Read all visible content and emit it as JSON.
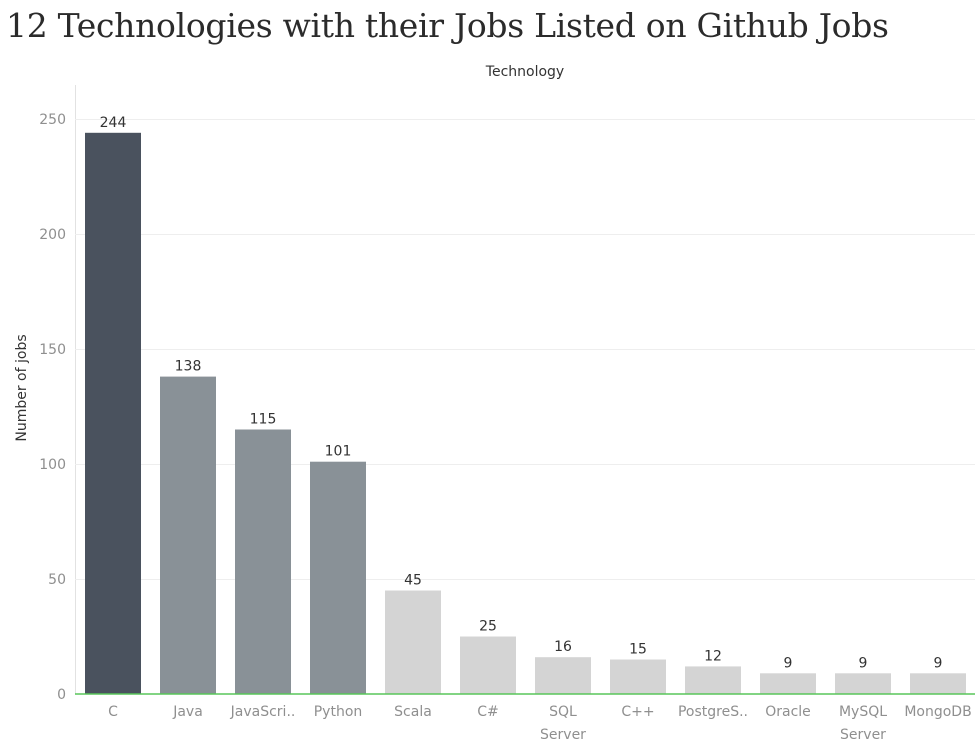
{
  "page_title": "12 Technologies with their Jobs Listed on Github Jobs",
  "chart_data": {
    "type": "bar",
    "title": "12 Technologies with their Jobs Listed on Github Jobs",
    "xlabel": "Technology",
    "ylabel": "Number of jobs",
    "x_axis_position": "top",
    "categories": [
      "C",
      "Java",
      "JavaScri..",
      "Python",
      "Scala",
      "C#",
      "SQL Server",
      "C++",
      "PostgreS..",
      "Oracle",
      "MySQL Server",
      "MongoDB"
    ],
    "values": [
      244,
      138,
      115,
      101,
      45,
      25,
      16,
      15,
      12,
      9,
      9,
      9
    ],
    "bar_colors": [
      "#4a525e",
      "#899197",
      "#899197",
      "#899197",
      "#d4d4d4",
      "#d4d4d4",
      "#d4d4d4",
      "#d4d4d4",
      "#d4d4d4",
      "#d4d4d4",
      "#d4d4d4",
      "#d4d4d4"
    ],
    "yticks": [
      0,
      50,
      100,
      150,
      200,
      250
    ],
    "ylim": [
      0,
      250
    ],
    "grid": true,
    "baseline_color": "#59c55a",
    "gridline_color": "#eeeeee"
  }
}
